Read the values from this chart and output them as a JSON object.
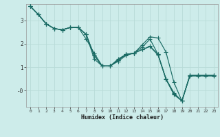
{
  "xlabel": "Humidex (Indice chaleur)",
  "bg_color": "#cdecea",
  "line_color": "#1a6b64",
  "grid_color": "#b8dbd8",
  "xlim": [
    -0.5,
    23.5
  ],
  "ylim": [
    -0.7,
    3.7
  ],
  "series": [
    [
      3.6,
      3.25,
      2.85,
      2.65,
      2.6,
      2.7,
      2.7,
      2.4,
      1.35,
      1.05,
      1.05,
      1.35,
      1.55,
      1.6,
      1.95,
      2.3,
      2.25,
      1.65,
      0.35,
      -0.45,
      0.65,
      0.65,
      0.65,
      0.65
    ],
    [
      3.6,
      3.25,
      2.85,
      2.65,
      2.6,
      2.7,
      2.7,
      2.2,
      1.6,
      1.05,
      1.05,
      1.25,
      1.5,
      1.6,
      1.85,
      2.2,
      1.55,
      0.5,
      -0.1,
      -0.45,
      0.65,
      0.65,
      0.65,
      0.65
    ],
    [
      3.6,
      3.25,
      2.85,
      2.65,
      2.6,
      2.7,
      2.7,
      2.4,
      1.5,
      1.05,
      1.05,
      1.3,
      1.55,
      1.6,
      1.75,
      1.9,
      1.55,
      0.5,
      -0.15,
      -0.45,
      0.65,
      0.65,
      0.65,
      0.65
    ],
    [
      3.6,
      3.25,
      2.85,
      2.65,
      2.6,
      2.7,
      2.7,
      2.4,
      1.5,
      1.05,
      1.05,
      1.3,
      1.55,
      1.6,
      1.75,
      1.88,
      1.52,
      0.48,
      -0.18,
      -0.44,
      0.62,
      0.62,
      0.62,
      0.62
    ]
  ],
  "xtick_labels": [
    "0",
    "1",
    "2",
    "3",
    "4",
    "5",
    "6",
    "7",
    "8",
    "9",
    "10",
    "11",
    "12",
    "13",
    "14",
    "15",
    "16",
    "17",
    "18",
    "19",
    "20",
    "21",
    "22",
    "23"
  ],
  "ytick_vals": [
    0,
    1,
    2,
    3
  ],
  "ytick_labels": [
    "-0",
    "1",
    "2",
    "3"
  ]
}
